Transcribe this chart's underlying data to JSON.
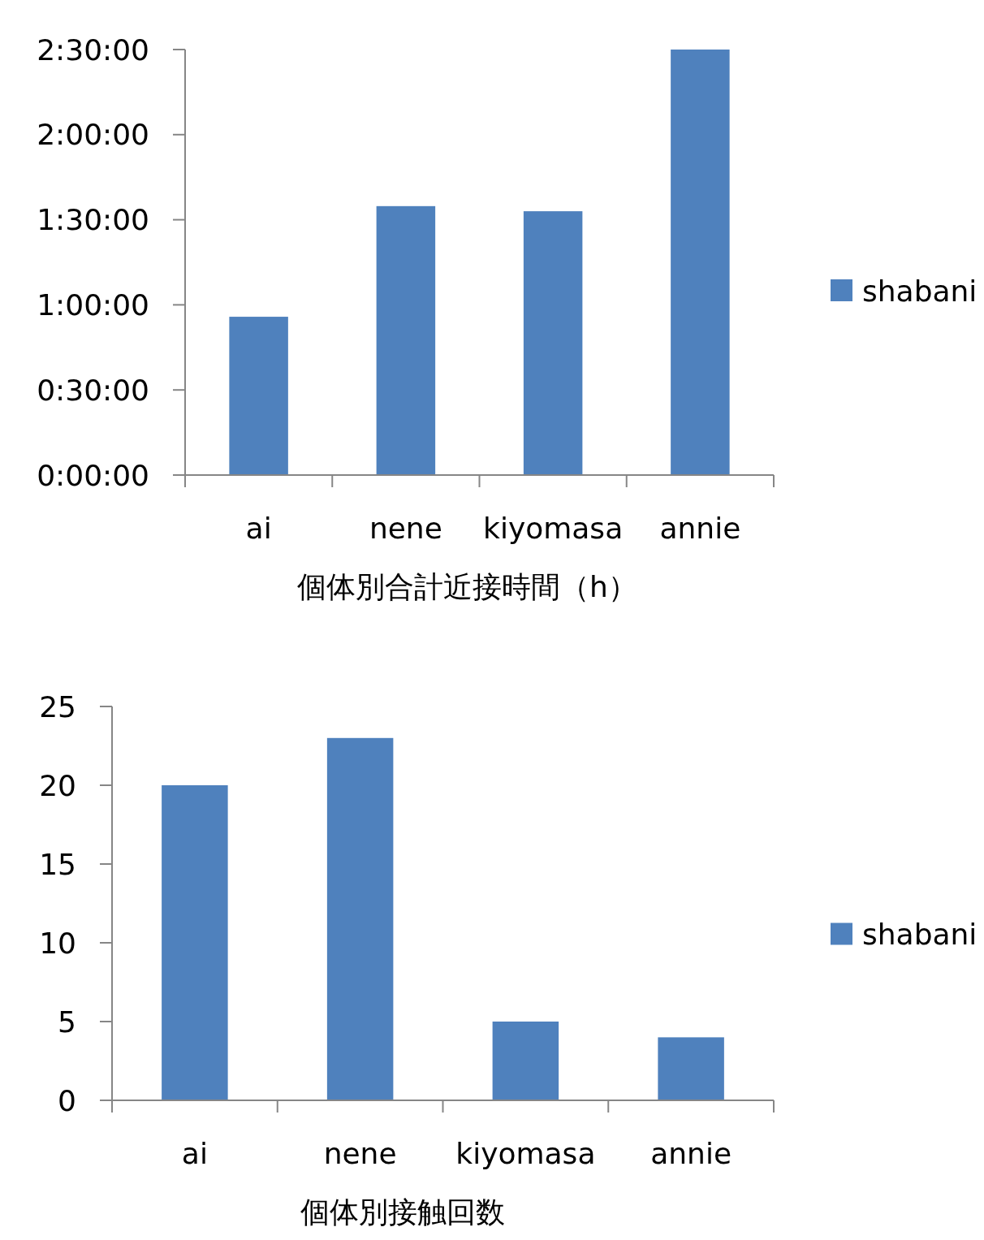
{
  "chart_data": [
    {
      "type": "bar",
      "xlabel": "個体別合計近接時間（h）",
      "categories": [
        "ai",
        "nene",
        "kiyomasa",
        "annie"
      ],
      "series": [
        {
          "name": "shabani",
          "color": "#4f81bd",
          "values": [
            0.93,
            1.58,
            1.55,
            2.5
          ]
        }
      ],
      "ylim": [
        0,
        2.5
      ],
      "yticks": [
        {
          "value": 0,
          "label": "0:00:00"
        },
        {
          "value": 0.5,
          "label": "0:30:00"
        },
        {
          "value": 1,
          "label": "1:00:00"
        },
        {
          "value": 1.5,
          "label": "1:30:00"
        },
        {
          "value": 2,
          "label": "2:00:00"
        },
        {
          "value": 2.5,
          "label": "2:30:00"
        }
      ],
      "grid": false,
      "legend": "right"
    },
    {
      "type": "bar",
      "xlabel": "個体別接触回数",
      "categories": [
        "ai",
        "nene",
        "kiyomasa",
        "annie"
      ],
      "series": [
        {
          "name": "shabani",
          "color": "#4f81bd",
          "values": [
            20,
            23,
            5,
            4
          ]
        }
      ],
      "ylim": [
        0,
        25
      ],
      "yticks": [
        0,
        5,
        10,
        15,
        20,
        25
      ],
      "grid": false,
      "legend": "right"
    }
  ]
}
